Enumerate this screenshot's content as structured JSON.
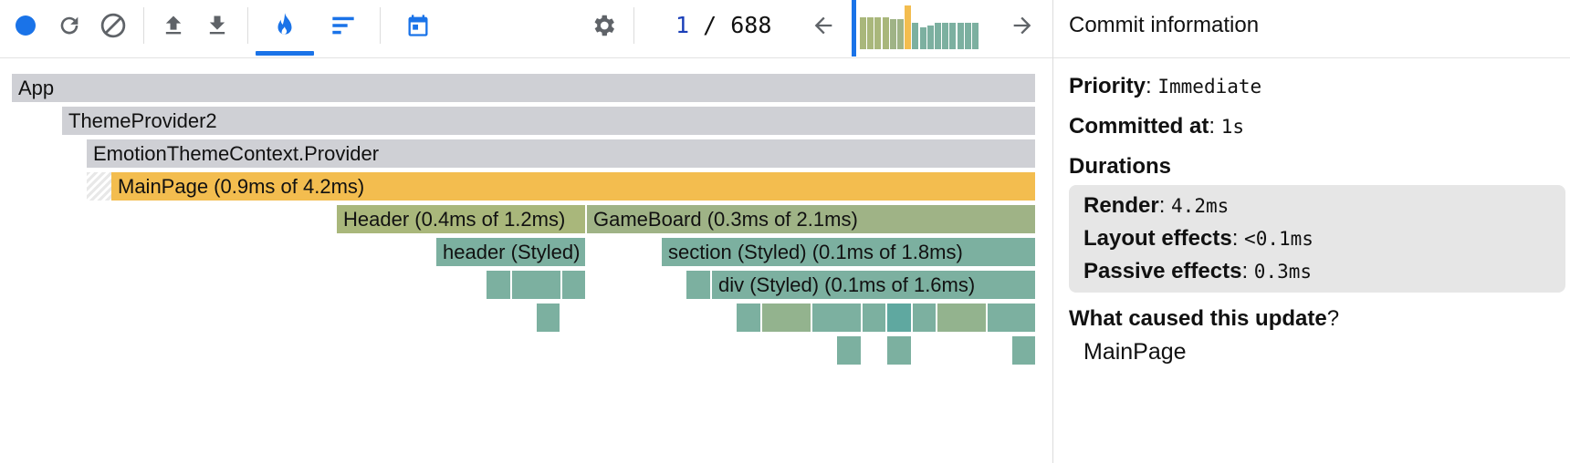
{
  "toolbar": {
    "icons": [
      "record-icon",
      "reload-icon",
      "clear-icon",
      "upload-icon",
      "download-icon",
      "flame-chart-icon",
      "ranked-chart-icon",
      "timeline-icon",
      "settings-icon",
      "previous-arrow-icon",
      "next-arrow-icon"
    ],
    "accent_color": "#1a73e8",
    "active_tab": "flamegraph"
  },
  "commit_nav": {
    "current": "1",
    "separator": " / ",
    "total": "688"
  },
  "snapshot_bars": [
    {
      "level": 0.72,
      "color": "#a9b77b"
    },
    {
      "level": 0.72,
      "color": "#a9b77b"
    },
    {
      "level": 0.72,
      "color": "#a9b77b"
    },
    {
      "level": 0.72,
      "color": "#a9b77b"
    },
    {
      "level": 0.68,
      "color": "#9fb386"
    },
    {
      "level": 0.68,
      "color": "#9fb386"
    },
    {
      "level": 1.0,
      "color": "#f3bd4f"
    },
    {
      "level": 0.6,
      "color": "#7cb0a0"
    },
    {
      "level": 0.5,
      "color": "#7cb0a0"
    },
    {
      "level": 0.55,
      "color": "#7cb0a0"
    },
    {
      "level": 0.6,
      "color": "#7cb0a0"
    },
    {
      "level": 0.6,
      "color": "#7cb0a0"
    },
    {
      "level": 0.6,
      "color": "#7cb0a0"
    },
    {
      "level": 0.6,
      "color": "#7cb0a0"
    },
    {
      "level": 0.6,
      "color": "#7cb0a0"
    },
    {
      "level": 0.6,
      "color": "#7cb0a0"
    }
  ],
  "flamegraph": {
    "nodes": [
      {
        "label": "App",
        "color": "#cfd0d5"
      },
      {
        "label": "ThemeProvider2",
        "color": "#cfd0d5"
      },
      {
        "label": "EmotionThemeContext.Provider",
        "color": "#cfd0d5"
      },
      {
        "label": "MainPage (0.9ms of 4.2ms)",
        "color": "#f3bd4f"
      },
      {
        "label": "Header (0.4ms of 1.2ms)",
        "color": "#a9b77b"
      },
      {
        "label": "GameBoard (0.3ms of 2.1ms)",
        "color": "#9fb386"
      },
      {
        "label": "header (Styled)",
        "color": "#7cb0a0"
      },
      {
        "label": "section (Styled) (0.1ms of 1.8ms)",
        "color": "#7cb0a0"
      },
      {
        "label": "div (Styled) (0.1ms of 1.6ms)",
        "color": "#7cb0a0"
      }
    ],
    "small_nodes": [
      {
        "color": "#7cb0a0"
      },
      {
        "color": "#7cb0a0"
      },
      {
        "color": "#7cb0a0"
      },
      {
        "color": "#7cb0a0"
      },
      {
        "color": "#7cb0a0"
      },
      {
        "color": "#7cb0a0"
      },
      {
        "color": "#93b38e"
      },
      {
        "color": "#7cb0a0"
      },
      {
        "color": "#7cb0a0"
      },
      {
        "color": "#5fa8a0"
      },
      {
        "color": "#7cb0a0"
      },
      {
        "color": "#93b38e"
      },
      {
        "color": "#7cb0a0"
      },
      {
        "color": "#7cb0a0"
      },
      {
        "color": "#7cb0a0"
      },
      {
        "color": "#7cb0a0"
      }
    ]
  },
  "panel": {
    "title": "Commit information",
    "priority_label": "Priority",
    "priority_value": "Immediate",
    "committed_label": "Committed at",
    "committed_value": "1s",
    "durations_label": "Durations",
    "render_label": "Render",
    "render_value": "4.2ms",
    "layout_label": "Layout effects",
    "layout_value": "<0.1ms",
    "passive_label": "Passive effects",
    "passive_value": "0.3ms",
    "cause_label": "What caused this update",
    "cause_item": "MainPage"
  }
}
